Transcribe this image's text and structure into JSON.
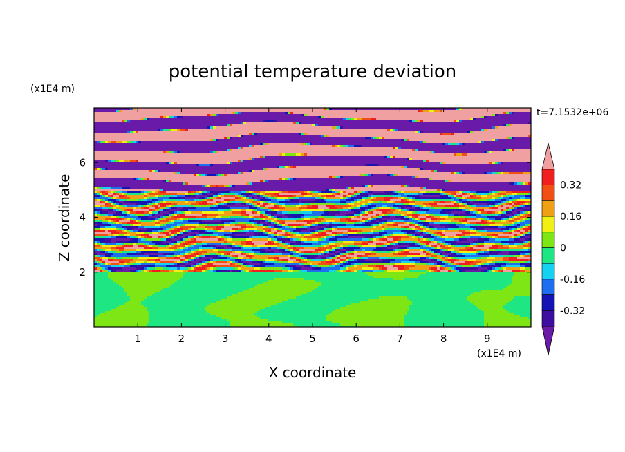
{
  "chart_data": {
    "type": "heatmap",
    "title": "potential temperature deviation",
    "xlabel": "X coordinate",
    "ylabel": "Z coordinate",
    "x_unit": "(x1E4 m)",
    "y_unit": "(x1E4 m)",
    "time_label": "t=7.1532e+06",
    "xlim": [
      0,
      10
    ],
    "ylim": [
      0,
      8
    ],
    "x_ticks": [
      "1",
      "2",
      "3",
      "4",
      "5",
      "6",
      "7",
      "8",
      "9"
    ],
    "y_ticks": [
      "2",
      "4",
      "6"
    ],
    "colorbar": {
      "labels": [
        "0.32",
        "0.16",
        "0",
        "-0.16",
        "-0.32"
      ],
      "label_values": [
        0.32,
        0.16,
        0,
        -0.16,
        -0.32
      ],
      "levels": [
        -0.4,
        -0.32,
        -0.24,
        -0.16,
        -0.08,
        0,
        0.08,
        0.16,
        0.24,
        0.32,
        0.4
      ],
      "colors": [
        "#6a1aa8",
        "#3d0fa0",
        "#1414b4",
        "#1e6ef0",
        "#14d2f0",
        "#1ee682",
        "#7ee614",
        "#f0f014",
        "#f0a014",
        "#f05014",
        "#f01e1e",
        "#f0a0a0"
      ]
    },
    "layers": [
      {
        "z_range": [
          0,
          2.0
        ],
        "description": "green/lime near-neutral layer",
        "dominant_values": [
          0,
          0.08
        ]
      },
      {
        "z_range": [
          2.0,
          5.0
        ],
        "description": "multicolor wave/turbulence layer",
        "dominant_values": [
          -0.4,
          0.4
        ]
      },
      {
        "z_range": [
          5.0,
          8.0
        ],
        "description": "alternating pink/purple bands",
        "dominant_values": [
          -0.4,
          0.4
        ]
      }
    ]
  }
}
